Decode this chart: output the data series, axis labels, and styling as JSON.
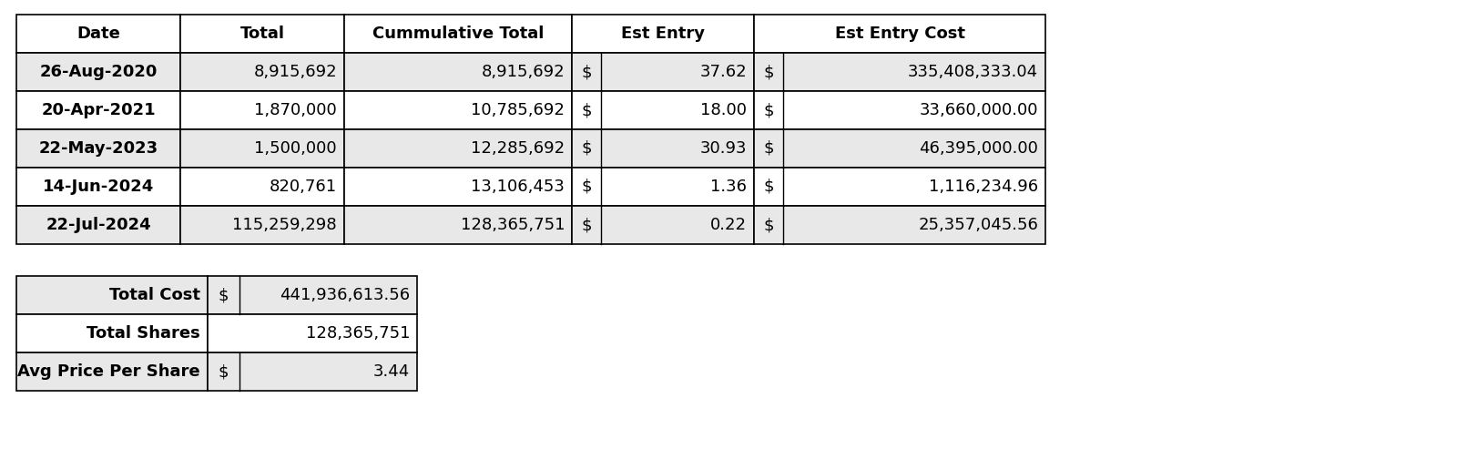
{
  "main_table": {
    "headers": [
      "Date",
      "Total",
      "Cummulative Total",
      "Est Entry",
      "Est Entry Cost"
    ],
    "rows": [
      [
        "26-Aug-2020",
        "8,915,692",
        "8,915,692",
        "37.62",
        "335,408,333.04"
      ],
      [
        "20-Apr-2021",
        "1,870,000",
        "10,785,692",
        "18.00",
        "33,660,000.00"
      ],
      [
        "22-May-2023",
        "1,500,000",
        "12,285,692",
        "30.93",
        "46,395,000.00"
      ],
      [
        "14-Jun-2024",
        "820,761",
        "13,106,453",
        "1.36",
        "1,116,234.96"
      ],
      [
        "22-Jul-2024",
        "115,259,298",
        "128,365,751",
        "0.22",
        "25,357,045.56"
      ]
    ]
  },
  "summary_table": {
    "rows": [
      [
        "Total Cost",
        "$",
        "441,936,613.56"
      ],
      [
        "Total Shares",
        "",
        "128,365,751"
      ],
      [
        "Avg Price Per Share",
        "$",
        "3.44"
      ]
    ]
  },
  "bg_header": "#ffffff",
  "bg_row_even": "#e8e8e8",
  "bg_row_odd": "#ffffff",
  "border_color": "#000000",
  "text_color": "#000000",
  "font_size": 13,
  "fig_width": 16.0,
  "fig_height": 5.16,
  "dpi": 100
}
